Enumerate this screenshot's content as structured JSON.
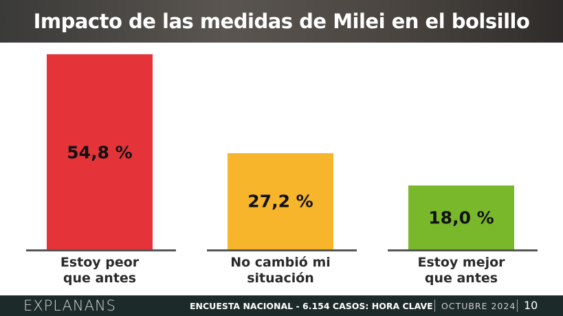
{
  "chart_data": {
    "type": "bar",
    "title": "Impacto de las medidas de Milei en el bolsillo",
    "categories": [
      "Estoy peor que antes",
      "No cambió mi situación",
      "Estoy mejor que antes"
    ],
    "values": [
      54.8,
      27.2,
      18.0
    ],
    "value_labels": [
      "54,8 %",
      "27,2 %",
      "18,0 %"
    ],
    "colors": [
      "#e5333a",
      "#f7b52b",
      "#79b82b"
    ]
  },
  "footer": {
    "brand": "EXPLANANS",
    "survey": "ENCUESTA NACIONAL - 6.154 CASOS:",
    "source": "HORA CLAVE",
    "date": "OCTUBRE 2024",
    "page": "10"
  }
}
